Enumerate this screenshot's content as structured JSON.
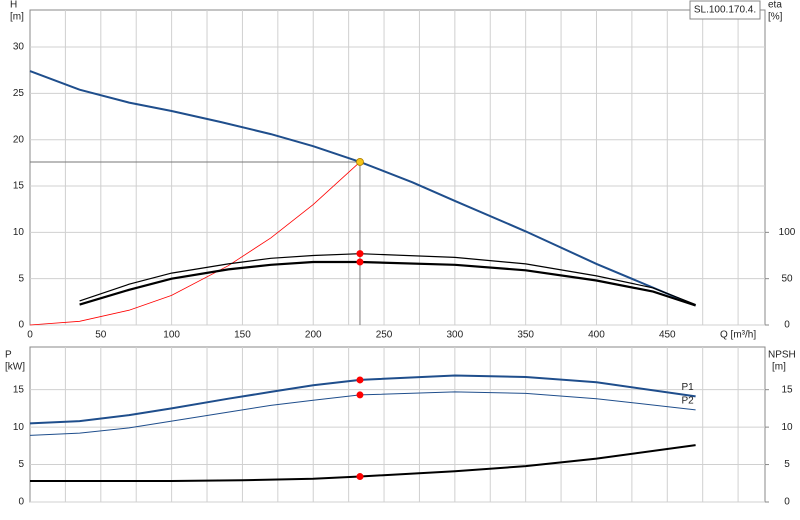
{
  "chart_data": [
    {
      "type": "line",
      "annotation": "SL.100.170.4.",
      "y_label": "H",
      "y_unit": "[m]",
      "y2_label": "eta",
      "y2_unit": "[%]",
      "x_label": "Q [m³/h]",
      "xlim": [
        0,
        519
      ],
      "ylim": [
        0,
        34
      ],
      "y2lim": [
        0,
        340
      ],
      "xticks": [
        0,
        50,
        100,
        150,
        200,
        250,
        300,
        350,
        400,
        450
      ],
      "xgrid": [
        25,
        50,
        75,
        100,
        125,
        150,
        175,
        200,
        225,
        250,
        275,
        300,
        325,
        350,
        375,
        400,
        425,
        450,
        475,
        500
      ],
      "yticks": [
        0,
        5,
        10,
        15,
        20,
        25,
        30
      ],
      "y2ticks": [
        0,
        50,
        100
      ],
      "grid": true,
      "series": [
        {
          "color": "#1f4e8c",
          "width": 2,
          "x": [
            0,
            35,
            70,
            100,
            135,
            170,
            200,
            233,
            270,
            300,
            350,
            400,
            470
          ],
          "values": [
            27.4,
            25.4,
            24,
            23.1,
            21.9,
            20.6,
            19.3,
            17.6,
            15.4,
            13.4,
            10.1,
            6.6,
            2.1
          ]
        },
        {
          "color": "#ff0000",
          "width": 0.8,
          "x": [
            0,
            35,
            70,
            100,
            140,
            170,
            200,
            233
          ],
          "values": [
            0,
            0.4,
            1.6,
            3.2,
            6.4,
            9.4,
            13,
            17.6
          ]
        },
        {
          "color": "#000000",
          "width": 1.2,
          "axis": "y2",
          "x": [
            35,
            70,
            100,
            140,
            170,
            200,
            233,
            300,
            350,
            400,
            440,
            470
          ],
          "values": [
            26,
            44,
            56,
            66,
            72,
            75,
            77,
            73,
            66,
            53,
            40,
            22
          ]
        },
        {
          "color": "#000000",
          "width": 2.2,
          "axis": "y2",
          "x": [
            35,
            70,
            100,
            140,
            170,
            200,
            233,
            300,
            350,
            400,
            440,
            470
          ],
          "values": [
            22,
            38,
            50,
            60,
            65,
            68,
            68,
            65,
            59,
            48,
            36,
            21
          ]
        }
      ],
      "points": [
        {
          "x": 233,
          "y": 17.6,
          "color": "#f5c518",
          "guides": true
        },
        {
          "x": 233,
          "y": 77,
          "axis": "y2",
          "color": "#ff0000"
        },
        {
          "x": 233,
          "y": 68,
          "axis": "y2",
          "color": "#ff0000"
        }
      ]
    },
    {
      "type": "line",
      "y_label": "P",
      "y_unit": "[kW]",
      "y2_label": "NPSH",
      "y2_unit": "[m]",
      "xlim": [
        0,
        519
      ],
      "ylim": [
        0,
        20.7
      ],
      "y2lim": [
        0,
        20.7
      ],
      "xgrid": [
        25,
        50,
        75,
        100,
        125,
        150,
        175,
        200,
        225,
        250,
        275,
        300,
        325,
        350,
        375,
        400,
        425,
        450,
        475,
        500
      ],
      "yticks": [
        0,
        5,
        10,
        15
      ],
      "y2ticks": [
        0,
        5,
        10,
        15
      ],
      "grid": true,
      "series": [
        {
          "name": "P1",
          "color": "#1f4e8c",
          "width": 2,
          "x": [
            0,
            35,
            70,
            100,
            140,
            170,
            200,
            233,
            300,
            350,
            400,
            470
          ],
          "values": [
            10.5,
            10.8,
            11.6,
            12.5,
            13.8,
            14.7,
            15.6,
            16.3,
            16.9,
            16.7,
            16,
            14.1
          ]
        },
        {
          "name": "P2",
          "color": "#1f4e8c",
          "width": 1,
          "x": [
            0,
            35,
            70,
            100,
            140,
            170,
            200,
            233,
            300,
            350,
            400,
            470
          ],
          "values": [
            8.9,
            9.2,
            9.9,
            10.8,
            12,
            12.9,
            13.6,
            14.3,
            14.7,
            14.5,
            13.8,
            12.3
          ]
        },
        {
          "color": "#000000",
          "width": 2,
          "axis": "y2",
          "x": [
            0,
            100,
            150,
            200,
            233,
            300,
            350,
            400,
            470
          ],
          "values": [
            2.8,
            2.8,
            2.9,
            3.1,
            3.4,
            4.1,
            4.8,
            5.8,
            7.6
          ]
        }
      ],
      "points": [
        {
          "x": 233,
          "y": 16.3,
          "color": "#ff0000"
        },
        {
          "x": 233,
          "y": 14.3,
          "color": "#ff0000"
        },
        {
          "x": 233,
          "y": 3.4,
          "axis": "y2",
          "color": "#ff0000"
        }
      ]
    }
  ]
}
